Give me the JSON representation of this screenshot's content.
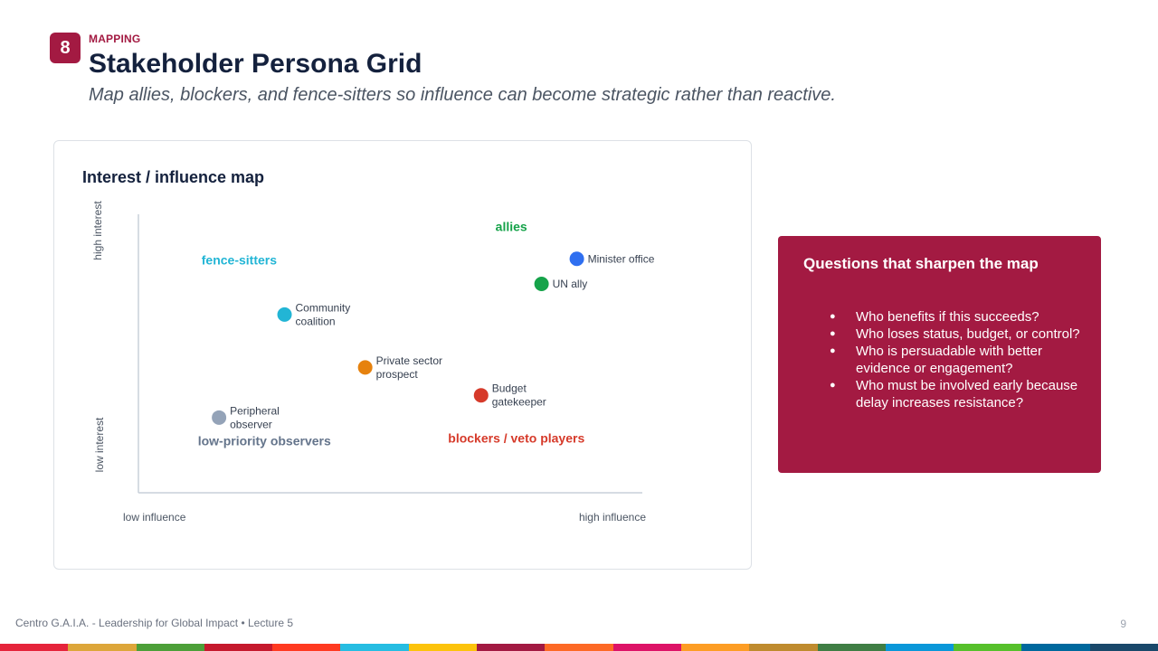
{
  "header": {
    "slide_number": "8",
    "eyebrow": "MAPPING",
    "title": "Stakeholder Persona Grid",
    "subtitle": "Map allies, blockers, and fence-sitters so influence can become strategic rather than reactive."
  },
  "card": {
    "title": "Interest / influence map"
  },
  "chart_data": {
    "type": "scatter",
    "title": "Interest / influence map",
    "xlabel_low": "low influence",
    "xlabel_high": "high influence",
    "ylabel_low": "low interest",
    "ylabel_high": "high interest",
    "xlim": [
      0,
      100
    ],
    "ylim": [
      0,
      100
    ],
    "grid": false,
    "quadrants": [
      {
        "label": "allies",
        "color": "#16a34a",
        "x": 74,
        "y": 94
      },
      {
        "label": "fence-sitters",
        "color": "#22b5d5",
        "x": 20,
        "y": 82
      },
      {
        "label": "low-priority observers",
        "color": "#64748b",
        "x": 25,
        "y": 17
      },
      {
        "label": "blockers / veto players",
        "color": "#d63a2a",
        "x": 75,
        "y": 18
      }
    ],
    "points": [
      {
        "label": [
          "Minister office"
        ],
        "x": 87,
        "y": 84,
        "color": "#2f6ff0"
      },
      {
        "label": [
          "UN ally"
        ],
        "x": 80,
        "y": 75,
        "color": "#16a34a"
      },
      {
        "label": [
          "Community",
          "coalition"
        ],
        "x": 29,
        "y": 64,
        "color": "#22b5d5"
      },
      {
        "label": [
          "Private sector",
          "prospect"
        ],
        "x": 45,
        "y": 45,
        "color": "#e6820e"
      },
      {
        "label": [
          "Budget",
          "gatekeeper"
        ],
        "x": 68,
        "y": 35,
        "color": "#d63a2a"
      },
      {
        "label": [
          "Peripheral",
          "observer"
        ],
        "x": 16,
        "y": 27,
        "color": "#94a3b8"
      }
    ]
  },
  "questions": {
    "title": "Questions that sharpen the map",
    "items": [
      "Who benefits if this succeeds?",
      "Who loses status, budget, or control?",
      "Who is persuadable with better evidence or engagement?",
      "Who must be involved early because delay increases resistance?"
    ]
  },
  "footer": {
    "text": "Centro G.A.I.A. - Leadership for Global Impact • Lecture 5",
    "page": "9"
  },
  "colors": {
    "accent": "#a31a42",
    "stripe": [
      "#e5243b",
      "#dda63a",
      "#4c9f38",
      "#c5192d",
      "#ff3a21",
      "#26bde2",
      "#fcc30b",
      "#a21942",
      "#fd6925",
      "#dd1367",
      "#fd9d24",
      "#bf8b2e",
      "#3f7e44",
      "#0a97d9",
      "#56c02b",
      "#00689d",
      "#19486a"
    ]
  }
}
